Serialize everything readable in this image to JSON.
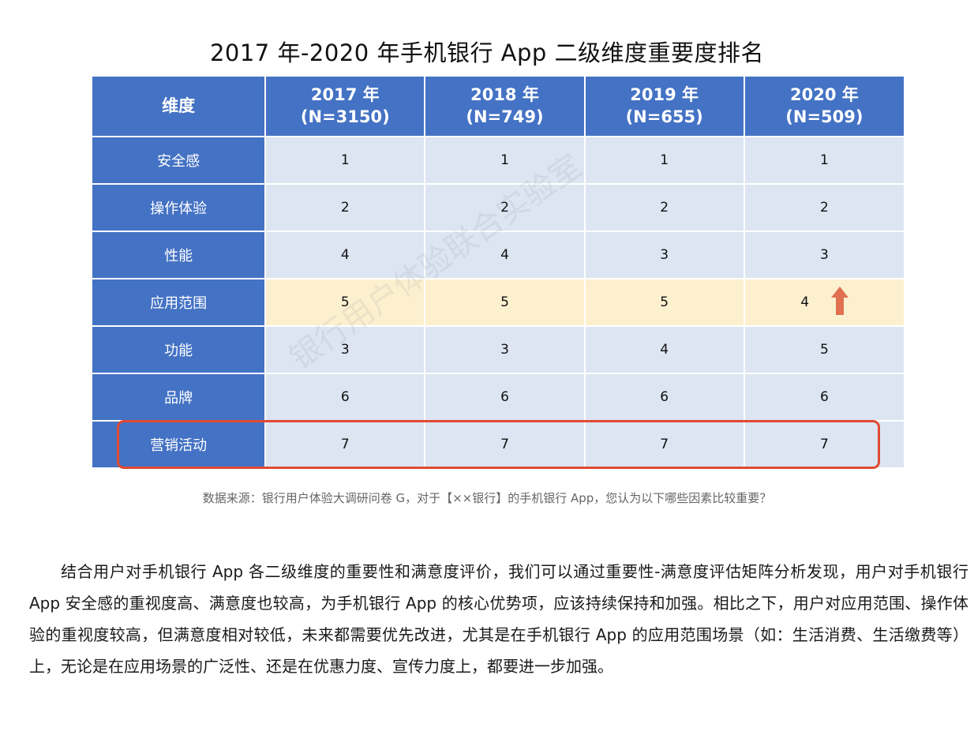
{
  "title": "2017 年-2020 年手机银行 App 二级维度重要度排名",
  "table": {
    "header": {
      "dimension": "维度",
      "years": [
        {
          "year": "2017 年",
          "n": "(N=3150)"
        },
        {
          "year": "2018 年",
          "n": "(N=749)"
        },
        {
          "year": "2019 年",
          "n": "(N=655)"
        },
        {
          "year": "2020 年",
          "n": "(N=509)"
        }
      ]
    },
    "rows": [
      {
        "dimension": "安全感",
        "values": [
          "1",
          "1",
          "1",
          "1"
        ]
      },
      {
        "dimension": "操作体验",
        "values": [
          "2",
          "2",
          "2",
          "2"
        ]
      },
      {
        "dimension": "性能",
        "values": [
          "4",
          "4",
          "3",
          "3"
        ]
      },
      {
        "dimension": "应用范围",
        "values": [
          "5",
          "5",
          "5",
          "4"
        ],
        "highlighted": true
      },
      {
        "dimension": "功能",
        "values": [
          "3",
          "3",
          "4",
          "5"
        ]
      },
      {
        "dimension": "品牌",
        "values": [
          "6",
          "6",
          "6",
          "6"
        ]
      },
      {
        "dimension": "营销活动",
        "values": [
          "7",
          "7",
          "7",
          "7"
        ],
        "boxed": true
      }
    ],
    "trend_icon": "up-arrow-icon",
    "colors": {
      "header": "#4472c4",
      "cell": "#dce5f1",
      "highlight": "#fdf0cf",
      "arrow": "#e07050",
      "box": "#e04a33"
    }
  },
  "source": "数据来源：银行用户体验大调研问卷 G，对于【××银行】的手机银行 App，您认为以下哪些因素比较重要？",
  "paragraph": "结合用户对手机银行 App 各二级维度的重要性和满意度评价，我们可以通过重要性-满意度评估矩阵分析发现，用户对手机银行 App 安全感的重视度高、满意度也较高，为手机银行 App 的核心优势项，应该持续保持和加强。相比之下，用户对应用范围、操作体验的重视度较高，但满意度相对较低，未来都需要优先改进，尤其是在手机银行 App 的应用范围场景（如：生活消费、生活缴费等）上，无论是在应用场景的广泛性、还是在优惠力度、宣传力度上，都要进一步加强。",
  "watermark": "银行用户体验联合实验室"
}
